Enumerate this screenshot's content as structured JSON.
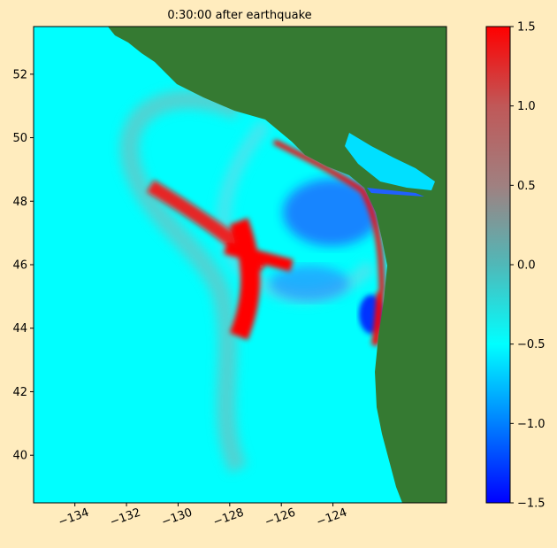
{
  "chart_data": {
    "type": "heatmap",
    "title": "0:30:00 after earthquake",
    "xlim": [
      -135.6,
      -119.6
    ],
    "ylim": [
      38.5,
      53.5
    ],
    "xticks": [
      {
        "value": -134,
        "label": "−134"
      },
      {
        "value": -132,
        "label": "−132"
      },
      {
        "value": -130,
        "label": "−130"
      },
      {
        "value": -128,
        "label": "−128"
      },
      {
        "value": -126,
        "label": "−126"
      },
      {
        "value": -124,
        "label": "−124"
      }
    ],
    "yticks": [
      40,
      42,
      44,
      46,
      48,
      50,
      52
    ],
    "land_color": "#357a32",
    "ocean_color": "#00ffff",
    "colorbar": {
      "lim": [
        -1.5,
        1.5
      ],
      "ticks": [
        {
          "value": -1.5,
          "label": "−1.5"
        },
        {
          "value": -1.0,
          "label": "−1.0"
        },
        {
          "value": -0.5,
          "label": "−0.5"
        },
        {
          "value": 0,
          "label": "0.0"
        },
        0.5,
        {
          "value": 1.0,
          "label": "1.0"
        },
        1.5
      ],
      "colors": [
        "#0000ff",
        "#0080ff",
        "#00ffff",
        "#50b8b8",
        "#a08080",
        "#c05858",
        "#ff0000"
      ]
    }
  }
}
